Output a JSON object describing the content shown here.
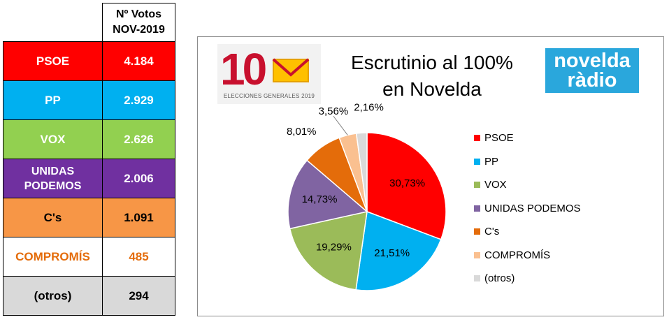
{
  "table": {
    "header_line1": "Nº Votos",
    "header_line2": "NOV-2019",
    "rows": [
      {
        "party": "PSOE",
        "votes": "4.184",
        "bg": "#ff0000",
        "text_color": "#ffffff"
      },
      {
        "party": "PP",
        "votes": "2.929",
        "bg": "#00b0f0",
        "text_color": "#ffffff"
      },
      {
        "party": "VOX",
        "votes": "2.626",
        "bg": "#92d050",
        "text_color": "#ffffff"
      },
      {
        "party": "UNIDAS PODEMOS",
        "votes": "2.006",
        "bg": "#7030a0",
        "text_color": "#ffffff"
      },
      {
        "party": "C's",
        "votes": "1.091",
        "bg": "#f79646",
        "text_color": "#000000"
      },
      {
        "party": "COMPROMÍS",
        "votes": "485",
        "bg": "#ffffff",
        "text_color": "#e46c0a"
      },
      {
        "party": "(otros)",
        "votes": "294",
        "bg": "#d9d9d9",
        "text_color": "#000000"
      }
    ]
  },
  "logos": {
    "elections_number": "10",
    "elections_caption": "ELECCIONES GENERALES 2019",
    "radio_line1": "novelda",
    "radio_line2": "ràdio"
  },
  "chart_data": {
    "type": "pie",
    "title_line1": "Escrutinio al 100%",
    "title_line2": "en Novelda",
    "categories": [
      "PSOE",
      "PP",
      "VOX",
      "UNIDAS PODEMOS",
      "C's",
      "COMPROMÍS",
      "(otros)"
    ],
    "values": [
      30.73,
      21.51,
      19.29,
      14.73,
      8.01,
      3.56,
      2.16
    ],
    "data_labels": [
      "30,73%",
      "21,51%",
      "19,29%",
      "14,73%",
      "8,01%",
      "3,56%",
      "2,16%"
    ],
    "colors": [
      "#ff0000",
      "#00b0f0",
      "#9bbb59",
      "#8064a2",
      "#e46c0a",
      "#fac090",
      "#d9d9d9"
    ],
    "legend_position": "right"
  }
}
